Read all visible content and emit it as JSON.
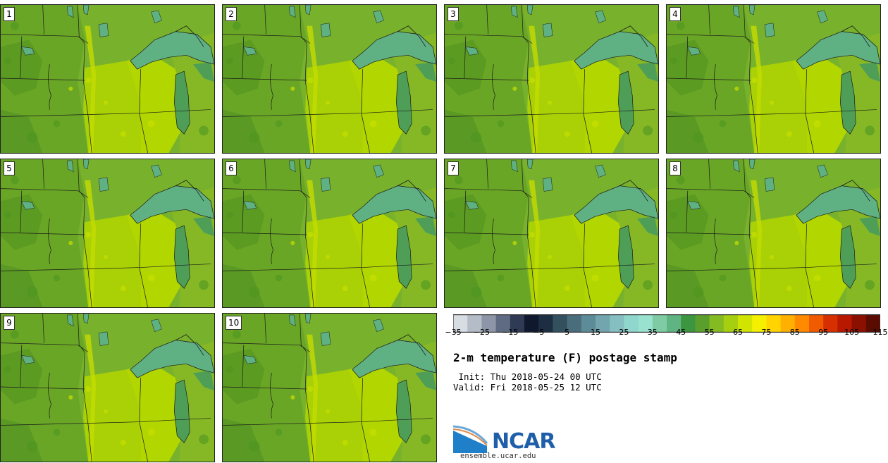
{
  "panels": [
    {
      "label": "1"
    },
    {
      "label": "2"
    },
    {
      "label": "3"
    },
    {
      "label": "4"
    },
    {
      "label": "5"
    },
    {
      "label": "6"
    },
    {
      "label": "7"
    },
    {
      "label": "8"
    },
    {
      "label": "9"
    },
    {
      "label": "10"
    }
  ],
  "colorbar": {
    "colors": [
      "#d8dde4",
      "#b4bcc8",
      "#8c96a8",
      "#5f6b82",
      "#2f3a55",
      "#10182e",
      "#1d2e42",
      "#32505e",
      "#4a6d7c",
      "#5e8b98",
      "#72a5ae",
      "#86bfc2",
      "#8fd6cc",
      "#98e2cf",
      "#7fcca4",
      "#60b482",
      "#3c9640",
      "#5a9e2c",
      "#84ba22",
      "#a6cf10",
      "#d0e400",
      "#f4f000",
      "#ffd400",
      "#ffb000",
      "#ff8a00",
      "#f05a00",
      "#d63000",
      "#b81800",
      "#8c1000",
      "#5a0c00"
    ],
    "ticks": [
      "−35",
      "−25",
      "−15",
      "−5",
      "5",
      "15",
      "25",
      "35",
      "45",
      "55",
      "65",
      "75",
      "85",
      "95",
      "105",
      "115"
    ]
  },
  "title": "2-m temperature (F) postage stamp",
  "init_line": " Init: Thu 2018-05-24 00 UTC",
  "valid_line": "Valid: Fri 2018-05-25 12 UTC",
  "logo": {
    "name": "NCAR",
    "url": "ensemble.ucar.edu"
  }
}
